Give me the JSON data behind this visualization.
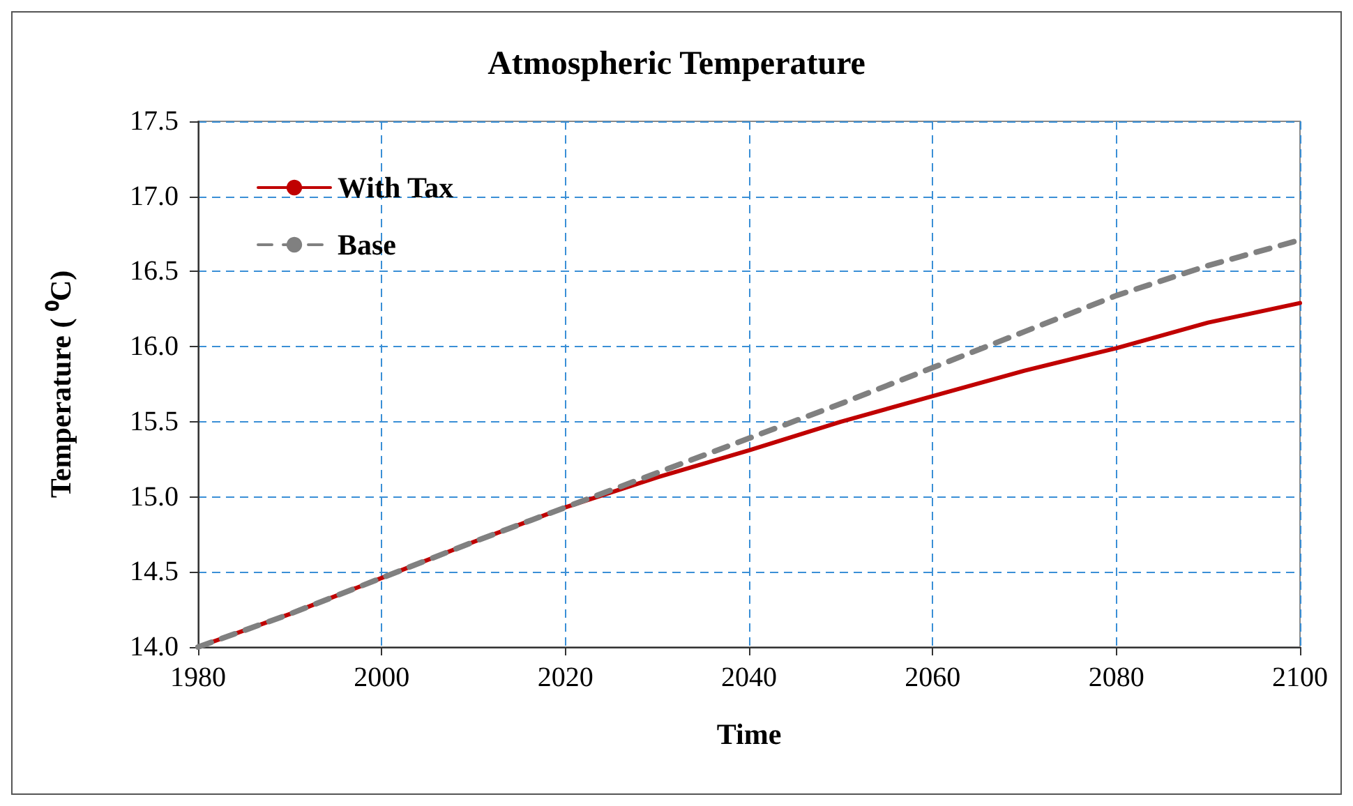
{
  "chart_data": {
    "type": "line",
    "title": "Atmospheric Temperature",
    "xlabel": "Time",
    "ylabel": "Temperature ( ⁰C)",
    "x": [
      1980,
      1990,
      2000,
      2010,
      2020,
      2030,
      2040,
      2050,
      2060,
      2070,
      2080,
      2090,
      2100
    ],
    "series": [
      {
        "name": "With Tax",
        "color": "#c00000",
        "line_style": "solid",
        "values": [
          14.0,
          14.22,
          14.46,
          14.7,
          14.93,
          15.13,
          15.31,
          15.5,
          15.67,
          15.84,
          15.99,
          16.16,
          16.29
        ]
      },
      {
        "name": "Base",
        "color": "#808080",
        "line_style": "dashed",
        "values": [
          14.0,
          14.22,
          14.46,
          14.7,
          14.93,
          15.16,
          15.39,
          15.62,
          15.86,
          16.1,
          16.34,
          16.54,
          16.71
        ]
      }
    ],
    "xlim": [
      1980,
      2100
    ],
    "xticks": [
      1980,
      2000,
      2020,
      2040,
      2060,
      2080,
      2100
    ],
    "ylim": [
      14.0,
      17.5
    ],
    "yticks": [
      {
        "value": 14.0,
        "label": "14.0"
      },
      {
        "value": 14.5,
        "label": "14.5"
      },
      {
        "value": 15.0,
        "label": "15.0"
      },
      {
        "value": 15.5,
        "label": "15.5"
      },
      {
        "value": 16.0,
        "label": "16.0"
      },
      {
        "value": 16.5,
        "label": "16.5"
      },
      {
        "value": 17.0,
        "label": "17.0"
      },
      {
        "value": 17.5,
        "label": "17.5"
      }
    ],
    "grid": true,
    "legend": "top left",
    "marker": "none"
  }
}
